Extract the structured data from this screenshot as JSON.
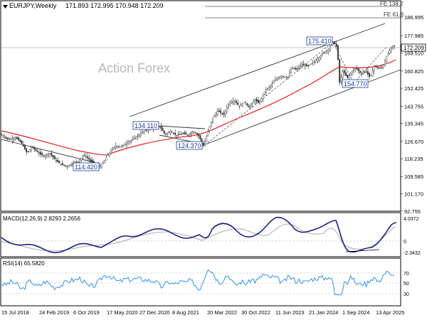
{
  "chart_data": {
    "type": "candlestick",
    "instrument": "EURJPY,Weekly",
    "ohlc_label": "171.893 172.995 170.948 172.209",
    "last_price": "172.209",
    "watermark": "Action Forex",
    "fib_labels": [
      "FE 138.2",
      "FE 61.8"
    ],
    "y_ticks": [
      "186.995",
      "177.985",
      "169.510",
      "160.825",
      "152.425",
      "143.755",
      "135.345",
      "126.670",
      "118.235",
      "109.585",
      "101.170",
      "92.755"
    ],
    "ylim": [
      92.755,
      186.995
    ],
    "annotations": [
      {
        "label": "134.110",
        "value": 134.11
      },
      {
        "label": "124.370",
        "value": 124.37
      },
      {
        "label": "114.420",
        "value": 114.42
      },
      {
        "label": "175.410",
        "value": 175.41
      },
      {
        "label": "154.770",
        "value": 154.77
      }
    ],
    "x_labels": [
      "15 Jul 2018",
      "24 Feb 2019",
      "6 Oct 2019",
      "17 May 2020",
      "27 Dec 2020",
      "8 Aug 2021",
      "20 Mar 2022",
      "30 Oct 2022",
      "11 Jun 2023",
      "21 Jan 2024",
      "1 Sep 2024",
      "13 Apr 2025"
    ],
    "price_path": [
      [
        0,
        130.2
      ],
      [
        12,
        127.5
      ],
      [
        22,
        128.5
      ],
      [
        30,
        126.0
      ],
      [
        38,
        121.0
      ],
      [
        45,
        124.0
      ],
      [
        54,
        121.0
      ],
      [
        62,
        119.5
      ],
      [
        70,
        121.0
      ],
      [
        78,
        117.5
      ],
      [
        86,
        115.5
      ],
      [
        94,
        114.5
      ],
      [
        102,
        116.0
      ],
      [
        110,
        117.0
      ],
      [
        118,
        120.0
      ],
      [
        125,
        118.0
      ],
      [
        132,
        115.5
      ],
      [
        140,
        114.4
      ],
      [
        146,
        116.5
      ],
      [
        150,
        119.5
      ],
      [
        156,
        122.0
      ],
      [
        162,
        124.5
      ],
      [
        170,
        124.0
      ],
      [
        178,
        126.0
      ],
      [
        186,
        127.5
      ],
      [
        194,
        129.5
      ],
      [
        204,
        132.0
      ],
      [
        212,
        133.0
      ],
      [
        218,
        133.8
      ],
      [
        224,
        134.1
      ],
      [
        232,
        130.0
      ],
      [
        240,
        131.5
      ],
      [
        248,
        129.5
      ],
      [
        256,
        130.5
      ],
      [
        264,
        129.8
      ],
      [
        272,
        131.5
      ],
      [
        280,
        129.0
      ],
      [
        286,
        124.4
      ],
      [
        292,
        131.0
      ],
      [
        298,
        137.5
      ],
      [
        306,
        141.5
      ],
      [
        314,
        139.5
      ],
      [
        322,
        145.5
      ],
      [
        330,
        146.5
      ],
      [
        336,
        143.5
      ],
      [
        344,
        146.0
      ],
      [
        350,
        143.0
      ],
      [
        358,
        147.0
      ],
      [
        364,
        145.0
      ],
      [
        372,
        151.0
      ],
      [
        380,
        153.5
      ],
      [
        388,
        157.0
      ],
      [
        396,
        158.5
      ],
      [
        404,
        157.5
      ],
      [
        410,
        162.5
      ],
      [
        416,
        161.5
      ],
      [
        424,
        164.0
      ],
      [
        432,
        163.0
      ],
      [
        440,
        165.0
      ],
      [
        446,
        166.5
      ],
      [
        454,
        169.5
      ],
      [
        462,
        171.5
      ],
      [
        468,
        175.4
      ],
      [
        474,
        172.0
      ],
      [
        477,
        155.0
      ],
      [
        482,
        161.0
      ],
      [
        488,
        157.5
      ],
      [
        493,
        160.0
      ],
      [
        500,
        162.5
      ],
      [
        507,
        159.5
      ],
      [
        514,
        161.0
      ],
      [
        520,
        157.5
      ],
      [
        526,
        163.5
      ],
      [
        532,
        162.0
      ],
      [
        538,
        163.0
      ],
      [
        544,
        168.5
      ],
      [
        549,
        171.5
      ],
      [
        553,
        173.5
      ],
      [
        556,
        172.2
      ]
    ],
    "sma_label": "",
    "macd": {
      "label": "MACD(12,26,9) 2.8293 2.2656",
      "ticks": [
        "4.0372",
        "0",
        "-2.3432"
      ],
      "ylim": [
        -2.3432,
        4.0372
      ]
    },
    "rsi": {
      "label": "RSI(14) 65.5820",
      "ticks": [
        "70",
        "50",
        "30"
      ],
      "ylim": [
        20,
        85
      ],
      "last": 65.582
    }
  }
}
